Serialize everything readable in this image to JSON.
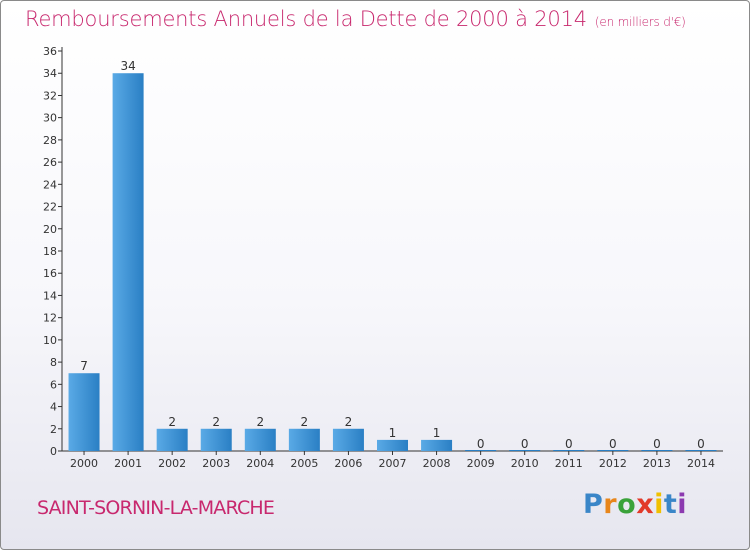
{
  "header": {
    "title": "Remboursements Annuels de la Dette de 2000 à 2014",
    "unit": "(en milliers d'€)"
  },
  "footer": {
    "commune": "SAINT-SORNIN-LA-MARCHE",
    "logo_letters": [
      "P",
      "r",
      "o",
      "x",
      "i",
      "t",
      "i"
    ],
    "logo_colors": [
      "#3a86c8",
      "#e8861b",
      "#3aa23a",
      "#e23a2a",
      "#f0c000",
      "#3a86c8",
      "#8c3ab0"
    ]
  },
  "chart_data": {
    "type": "bar",
    "title": "Remboursements Annuels de la Dette de 2000 à 2014",
    "subtitle": "(en milliers d'€)",
    "categories": [
      "2000",
      "2001",
      "2002",
      "2003",
      "2004",
      "2005",
      "2006",
      "2007",
      "2008",
      "2009",
      "2010",
      "2011",
      "2012",
      "2013",
      "2014"
    ],
    "values": [
      7,
      34,
      2,
      2,
      2,
      2,
      2,
      1,
      1,
      0,
      0,
      0,
      0,
      0,
      0
    ],
    "y_ticks": [
      0,
      2,
      4,
      6,
      8,
      10,
      12,
      14,
      16,
      18,
      20,
      22,
      24,
      26,
      28,
      30,
      32,
      34,
      36
    ],
    "ylim": [
      0,
      36
    ],
    "xlabel": "",
    "ylabel": "",
    "grid": false,
    "legend": "none",
    "colors": {
      "bar_light": "#5aaae6",
      "bar_dark": "#2a7fc4",
      "axis": "#333333",
      "label": "#333333"
    }
  }
}
